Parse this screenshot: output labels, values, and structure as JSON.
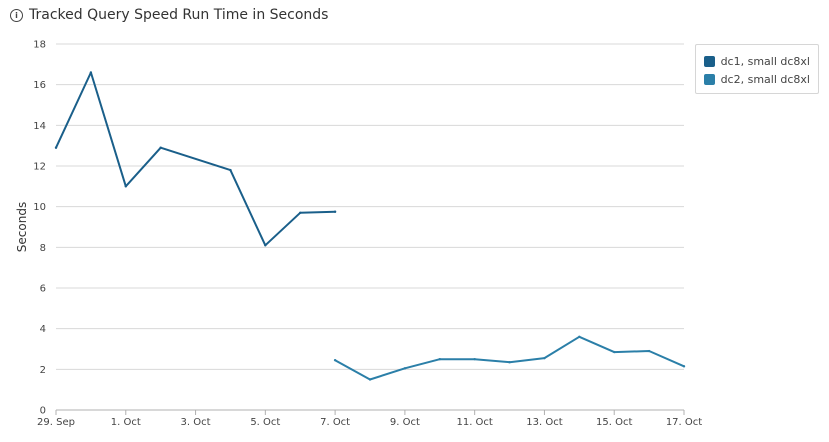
{
  "header": {
    "title": "Tracked Query Speed Run Time in Seconds"
  },
  "chart_data": {
    "type": "line",
    "ylabel": "Seconds",
    "xlabel": "",
    "ylim": [
      0,
      18
    ],
    "yticks": [
      "0",
      "2",
      "4",
      "6",
      "8",
      "10",
      "12",
      "14",
      "16",
      "18"
    ],
    "xlim": [
      "2017-09-29",
      "2017-10-17"
    ],
    "xticks": [
      {
        "date": "2017-09-29",
        "label": "29. Sep"
      },
      {
        "date": "2017-10-01",
        "label": "1. Oct"
      },
      {
        "date": "2017-10-03",
        "label": "3. Oct"
      },
      {
        "date": "2017-10-05",
        "label": "5. Oct"
      },
      {
        "date": "2017-10-07",
        "label": "7. Oct"
      },
      {
        "date": "2017-10-09",
        "label": "9. Oct"
      },
      {
        "date": "2017-10-11",
        "label": "11. Oct"
      },
      {
        "date": "2017-10-13",
        "label": "13. Oct"
      },
      {
        "date": "2017-10-15",
        "label": "15. Oct"
      },
      {
        "date": "2017-10-17",
        "label": "17. Oct"
      }
    ],
    "grid": true,
    "legend_position": "top-right",
    "series": [
      {
        "name": "dc1, small dc8xl",
        "color": "#1a5f8a",
        "points": [
          {
            "x": "2017-09-29",
            "y": 12.9
          },
          {
            "x": "2017-09-30",
            "y": 16.6
          },
          {
            "x": "2017-10-01",
            "y": 11.0
          },
          {
            "x": "2017-10-02",
            "y": 12.9
          },
          {
            "x": "2017-10-04",
            "y": 11.8
          },
          {
            "x": "2017-10-05",
            "y": 8.1
          },
          {
            "x": "2017-10-06",
            "y": 9.7
          },
          {
            "x": "2017-10-07",
            "y": 9.75
          }
        ]
      },
      {
        "name": "dc2, small dc8xl",
        "color": "#2b7fa8",
        "points": [
          {
            "x": "2017-10-07",
            "y": 2.45
          },
          {
            "x": "2017-10-08",
            "y": 1.5
          },
          {
            "x": "2017-10-09",
            "y": 2.05
          },
          {
            "x": "2017-10-10",
            "y": 2.5
          },
          {
            "x": "2017-10-11",
            "y": 2.5
          },
          {
            "x": "2017-10-12",
            "y": 2.35
          },
          {
            "x": "2017-10-13",
            "y": 2.55
          },
          {
            "x": "2017-10-14",
            "y": 3.6
          },
          {
            "x": "2017-10-15",
            "y": 2.85
          },
          {
            "x": "2017-10-16",
            "y": 2.9
          },
          {
            "x": "2017-10-17",
            "y": 2.15
          }
        ]
      }
    ]
  }
}
